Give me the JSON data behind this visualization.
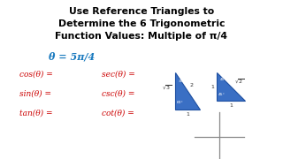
{
  "title_line1": "Use Reference Triangles to",
  "title_line2": "Determine the 6 Trigonometric",
  "title_line3": "Function Values: Multiple of π/4",
  "theta_label": "θ = 5π/4",
  "trig_left": [
    "cos(θ) =",
    "sin(θ) =",
    "tan(θ) ="
  ],
  "trig_right": [
    "sec(θ) =",
    "csc(θ) =",
    "cot(θ) ="
  ],
  "bg_color": "#ffffff",
  "title_color": "#000000",
  "theta_color": "#1a7abf",
  "trig_color": "#cc0000",
  "triangle_color": "#3a6fc4",
  "triangle_edge": "#1e4fa0",
  "axis_color": "#888888",
  "label_color": "#333333"
}
